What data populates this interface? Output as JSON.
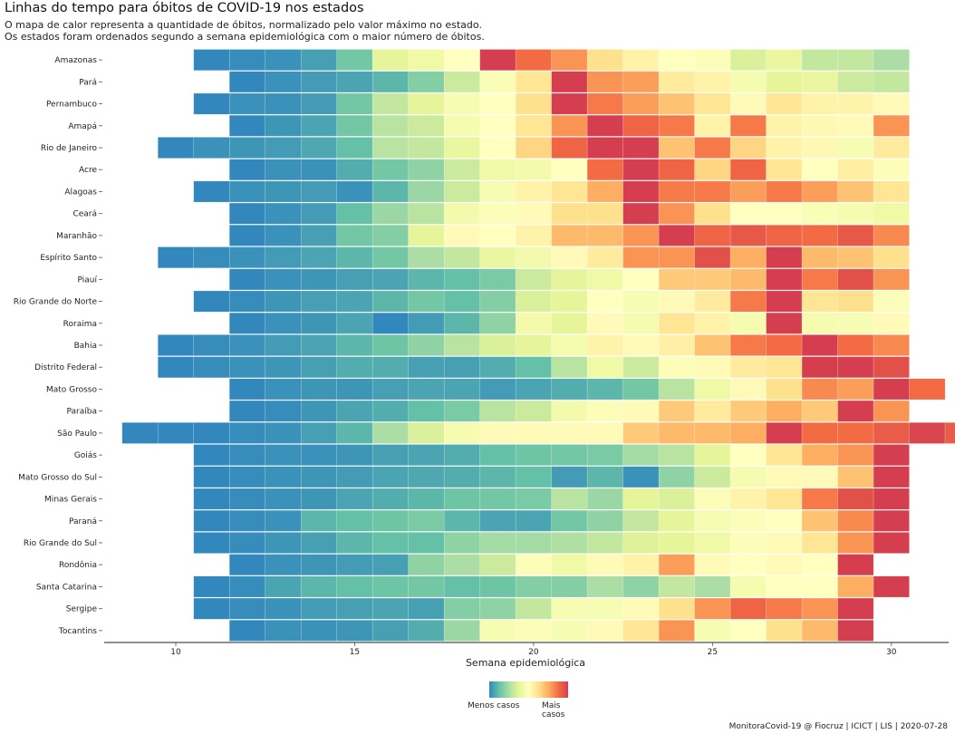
{
  "chart_data": {
    "type": "heatmap",
    "title": "Linhas do tempo para óbitos de COVID-19 nos estados",
    "subtitle_lines": [
      "O mapa de calor representa a quantidade de óbitos, normalizado pelo valor máximo no estado.",
      "Os estados foram ordenados segundo a semana epidemiológica com o maior número de óbitos."
    ],
    "xlabel": "Semana epidemiológica",
    "ylabel": "",
    "x_range": [
      8,
      31.6
    ],
    "x_ticks": [
      10,
      15,
      20,
      25,
      30
    ],
    "legend": {
      "low_label": "Menos casos",
      "high_label": "Mais casos",
      "position": "bottom"
    },
    "colors": [
      "#3288bd",
      "#66c2a5",
      "#abdda4",
      "#e6f598",
      "#ffffbf",
      "#fee08b",
      "#fdae61",
      "#f46d43",
      "#d53e4f"
    ],
    "caption": "MonitoraCovid-19 @ Fiocruz | ICICT | LIS | 2020-07-28",
    "rows": [
      {
        "state": "Amazonas",
        "start": 11,
        "values": [
          0.0,
          0.01,
          0.02,
          0.05,
          0.15,
          0.38,
          0.42,
          0.5,
          1.0,
          0.88,
          0.8,
          0.62,
          0.55,
          0.5,
          0.48,
          0.35,
          0.4,
          0.3,
          0.3,
          0.25
        ]
      },
      {
        "state": "Pará",
        "start": 12,
        "values": [
          0.0,
          0.02,
          0.04,
          0.06,
          0.1,
          0.18,
          0.32,
          0.47,
          0.6,
          1.0,
          0.8,
          0.78,
          0.58,
          0.55,
          0.45,
          0.38,
          0.4,
          0.32,
          0.3
        ]
      },
      {
        "state": "Pernambuco",
        "start": 11,
        "values": [
          0.0,
          0.02,
          0.02,
          0.04,
          0.15,
          0.3,
          0.38,
          0.46,
          0.5,
          0.62,
          1.0,
          0.85,
          0.78,
          0.7,
          0.6,
          0.52,
          0.6,
          0.55,
          0.55,
          0.52
        ]
      },
      {
        "state": "Amapá",
        "start": 12,
        "values": [
          0.0,
          0.03,
          0.06,
          0.15,
          0.28,
          0.32,
          0.45,
          0.5,
          0.6,
          0.8,
          1.0,
          0.9,
          0.85,
          0.55,
          0.85,
          0.55,
          0.53,
          0.52,
          0.8
        ]
      },
      {
        "state": "Rio de Janeiro",
        "start": 10,
        "values": [
          0.0,
          0.02,
          0.03,
          0.04,
          0.07,
          0.12,
          0.28,
          0.3,
          0.4,
          0.5,
          0.65,
          0.9,
          1.0,
          1.0,
          0.7,
          0.85,
          0.65,
          0.55,
          0.53,
          0.46,
          0.58
        ]
      },
      {
        "state": "Acre",
        "start": 12,
        "values": [
          0.0,
          0.02,
          0.02,
          0.08,
          0.15,
          0.2,
          0.32,
          0.42,
          0.44,
          0.5,
          0.88,
          1.0,
          0.9,
          0.65,
          0.9,
          0.6,
          0.5,
          0.57,
          0.48
        ]
      },
      {
        "state": "Alagoas",
        "start": 11,
        "values": [
          0.0,
          0.02,
          0.03,
          0.04,
          0.02,
          0.1,
          0.22,
          0.32,
          0.46,
          0.55,
          0.6,
          0.75,
          1.0,
          0.85,
          0.85,
          0.78,
          0.85,
          0.78,
          0.7,
          0.6
        ]
      },
      {
        "state": "Ceará",
        "start": 12,
        "values": [
          0.0,
          0.02,
          0.04,
          0.12,
          0.22,
          0.28,
          0.44,
          0.48,
          0.52,
          0.62,
          0.62,
          1.0,
          0.8,
          0.62,
          0.5,
          0.5,
          0.47,
          0.45,
          0.42
        ]
      },
      {
        "state": "Maranhão",
        "start": 12,
        "values": [
          0.0,
          0.02,
          0.05,
          0.15,
          0.18,
          0.38,
          0.52,
          0.5,
          0.55,
          0.72,
          0.72,
          0.8,
          1.0,
          0.9,
          0.93,
          0.9,
          0.88,
          0.93,
          0.82
        ]
      },
      {
        "state": "Espírito Santo",
        "start": 10,
        "values": [
          0.0,
          0.01,
          0.02,
          0.04,
          0.06,
          0.1,
          0.15,
          0.25,
          0.3,
          0.4,
          0.44,
          0.52,
          0.58,
          0.8,
          0.8,
          0.95,
          0.75,
          1.0,
          0.72,
          0.7,
          0.62
        ]
      },
      {
        "state": "Piauí",
        "start": 12,
        "values": [
          0.0,
          0.02,
          0.03,
          0.05,
          0.06,
          0.1,
          0.12,
          0.16,
          0.32,
          0.38,
          0.42,
          0.5,
          0.68,
          0.68,
          0.72,
          1.0,
          0.85,
          0.95,
          0.8
        ]
      },
      {
        "state": "Rio Grande do Norte",
        "start": 11,
        "values": [
          0.0,
          0.01,
          0.03,
          0.05,
          0.06,
          0.1,
          0.15,
          0.12,
          0.18,
          0.35,
          0.38,
          0.5,
          0.46,
          0.52,
          0.58,
          0.85,
          1.0,
          0.6,
          0.62,
          0.48
        ]
      },
      {
        "state": "Roraima",
        "start": 12,
        "values": [
          0.0,
          0.02,
          0.03,
          0.06,
          0.0,
          0.04,
          0.1,
          0.2,
          0.44,
          0.38,
          0.52,
          0.45,
          0.6,
          0.55,
          0.45,
          1.0,
          0.45,
          0.46,
          0.52
        ]
      },
      {
        "state": "Bahia",
        "start": 10,
        "values": [
          0.0,
          0.01,
          0.02,
          0.04,
          0.06,
          0.1,
          0.14,
          0.2,
          0.28,
          0.35,
          0.38,
          0.45,
          0.55,
          0.52,
          0.56,
          0.7,
          0.85,
          0.88,
          1.0,
          0.88,
          0.82
        ]
      },
      {
        "state": "Distrito Federal",
        "start": 10,
        "values": [
          0.0,
          0.01,
          0.02,
          0.03,
          0.05,
          0.08,
          0.08,
          0.05,
          0.05,
          0.08,
          0.12,
          0.28,
          0.42,
          0.32,
          0.48,
          0.52,
          0.58,
          0.6,
          1.0,
          1.0,
          0.95
        ]
      },
      {
        "state": "Mato Grosso",
        "start": 12,
        "values": [
          0.0,
          0.02,
          0.03,
          0.03,
          0.05,
          0.06,
          0.06,
          0.04,
          0.06,
          0.08,
          0.1,
          0.15,
          0.28,
          0.42,
          0.52,
          0.62,
          0.82,
          0.78,
          1.0,
          0.88
        ]
      },
      {
        "state": "Paraíba",
        "start": 12,
        "values": [
          0.0,
          0.01,
          0.03,
          0.06,
          0.08,
          0.12,
          0.16,
          0.28,
          0.32,
          0.44,
          0.48,
          0.52,
          0.68,
          0.58,
          0.68,
          0.75,
          0.68,
          1.0,
          0.8
        ]
      },
      {
        "state": "São Paulo",
        "start": 9,
        "values": [
          0.0,
          0.0,
          0.0,
          0.01,
          0.02,
          0.05,
          0.1,
          0.25,
          0.35,
          0.45,
          0.52,
          0.52,
          0.52,
          0.52,
          0.68,
          0.72,
          0.72,
          0.75,
          1.0,
          0.88,
          0.88,
          0.92,
          0.98,
          0.92
        ]
      },
      {
        "state": "Goiás",
        "start": 11,
        "values": [
          0.0,
          0.01,
          0.02,
          0.02,
          0.03,
          0.05,
          0.06,
          0.08,
          0.12,
          0.14,
          0.15,
          0.16,
          0.24,
          0.28,
          0.38,
          0.5,
          0.6,
          0.75,
          0.8,
          1.0
        ]
      },
      {
        "state": "Mato Grosso do Sul",
        "start": 11,
        "values": [
          0.0,
          0.01,
          0.02,
          0.03,
          0.04,
          0.06,
          0.07,
          0.08,
          0.1,
          0.12,
          0.04,
          0.1,
          0.02,
          0.2,
          0.32,
          0.45,
          0.52,
          0.52,
          0.7,
          1.0
        ]
      },
      {
        "state": "Minas Gerais",
        "start": 11,
        "values": [
          0.0,
          0.01,
          0.02,
          0.03,
          0.06,
          0.08,
          0.1,
          0.14,
          0.15,
          0.16,
          0.28,
          0.22,
          0.38,
          0.35,
          0.48,
          0.55,
          0.6,
          0.85,
          0.95,
          1.0
        ]
      },
      {
        "state": "Paraná",
        "start": 11,
        "values": [
          0.0,
          0.01,
          0.02,
          0.1,
          0.12,
          0.14,
          0.16,
          0.1,
          0.06,
          0.06,
          0.15,
          0.2,
          0.3,
          0.38,
          0.46,
          0.48,
          0.5,
          0.7,
          0.82,
          1.0
        ]
      },
      {
        "state": "Rio Grande do Sul",
        "start": 11,
        "values": [
          0.0,
          0.01,
          0.03,
          0.05,
          0.1,
          0.12,
          0.12,
          0.2,
          0.24,
          0.24,
          0.26,
          0.3,
          0.36,
          0.38,
          0.42,
          0.48,
          0.52,
          0.6,
          0.8,
          1.0
        ]
      },
      {
        "state": "Rondônia",
        "start": 12,
        "values": [
          0.0,
          0.02,
          0.03,
          0.04,
          0.05,
          0.2,
          0.25,
          0.32,
          0.48,
          0.42,
          0.52,
          0.55,
          0.78,
          0.52,
          0.5,
          0.52,
          0.5,
          1.0
        ]
      },
      {
        "state": "Santa Catarina",
        "start": 11,
        "values": [
          0.0,
          0.01,
          0.06,
          0.1,
          0.12,
          0.14,
          0.15,
          0.12,
          0.14,
          0.18,
          0.18,
          0.25,
          0.2,
          0.3,
          0.25,
          0.45,
          0.5,
          0.5,
          0.75,
          1.0
        ]
      },
      {
        "state": "Sergipe",
        "start": 11,
        "values": [
          0.0,
          0.01,
          0.02,
          0.04,
          0.05,
          0.06,
          0.05,
          0.18,
          0.2,
          0.3,
          0.46,
          0.46,
          0.52,
          0.62,
          0.8,
          0.9,
          0.85,
          0.8,
          1.0
        ]
      },
      {
        "state": "Tocantins",
        "start": 12,
        "values": [
          0.0,
          0.02,
          0.02,
          0.03,
          0.05,
          0.08,
          0.22,
          0.46,
          0.48,
          0.46,
          0.52,
          0.6,
          0.8,
          0.46,
          0.5,
          0.62,
          0.72,
          1.0
        ]
      }
    ]
  }
}
